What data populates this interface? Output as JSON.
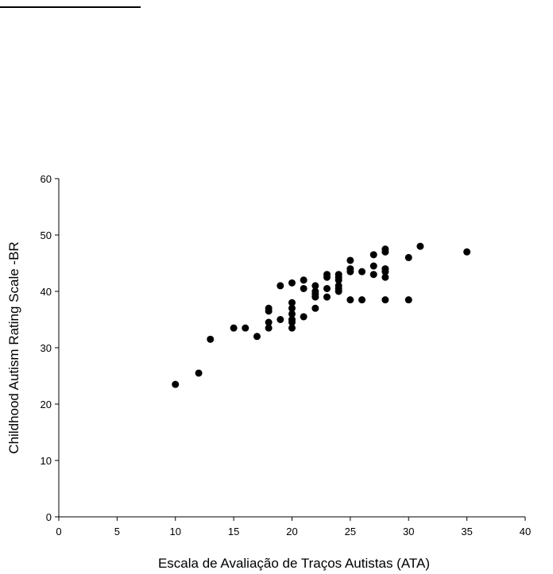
{
  "chart_data": {
    "type": "scatter",
    "title": "",
    "xlabel": "Escala de Avaliação de Traços Autistas  (ATA)",
    "ylabel": "Childhood Autism Rating Scale -BR",
    "xlim": [
      0,
      40
    ],
    "ylim": [
      0,
      60
    ],
    "xticks": [
      "0",
      "5",
      "10",
      "15",
      "20",
      "25",
      "30",
      "35",
      "40"
    ],
    "yticks": [
      "0",
      "10",
      "20",
      "30",
      "40",
      "50",
      "60"
    ],
    "grid": false,
    "legend": "none",
    "marker_color": "#000000",
    "points": [
      [
        10,
        23.5
      ],
      [
        12,
        25.5
      ],
      [
        13,
        31.5
      ],
      [
        15,
        33.5
      ],
      [
        16,
        33.5
      ],
      [
        17,
        32
      ],
      [
        18,
        33.5
      ],
      [
        18,
        34.5
      ],
      [
        18,
        36.5
      ],
      [
        18,
        37
      ],
      [
        19,
        35
      ],
      [
        19,
        41
      ],
      [
        20,
        33.5
      ],
      [
        20,
        34.5
      ],
      [
        20,
        35
      ],
      [
        20,
        36
      ],
      [
        20,
        37
      ],
      [
        20,
        38
      ],
      [
        20,
        41.5
      ],
      [
        21,
        35.5
      ],
      [
        21,
        40.5
      ],
      [
        21,
        42
      ],
      [
        22,
        37
      ],
      [
        22,
        39
      ],
      [
        22,
        39.5
      ],
      [
        22,
        40
      ],
      [
        22,
        41
      ],
      [
        23,
        39
      ],
      [
        23,
        40.5
      ],
      [
        23,
        42.5
      ],
      [
        23,
        43
      ],
      [
        24,
        40
      ],
      [
        24,
        40.5
      ],
      [
        24,
        41
      ],
      [
        24,
        42
      ],
      [
        24,
        42.5
      ],
      [
        24,
        43
      ],
      [
        25,
        38.5
      ],
      [
        25,
        43.5
      ],
      [
        25,
        44
      ],
      [
        25,
        45.5
      ],
      [
        26,
        38.5
      ],
      [
        26,
        43.5
      ],
      [
        27,
        43
      ],
      [
        27,
        44.5
      ],
      [
        27,
        46.5
      ],
      [
        28,
        38.5
      ],
      [
        28,
        42.5
      ],
      [
        28,
        43.5
      ],
      [
        28,
        44
      ],
      [
        28,
        47
      ],
      [
        28,
        47.5
      ],
      [
        30,
        38.5
      ],
      [
        30,
        46
      ],
      [
        31,
        48
      ],
      [
        35,
        47
      ]
    ]
  }
}
